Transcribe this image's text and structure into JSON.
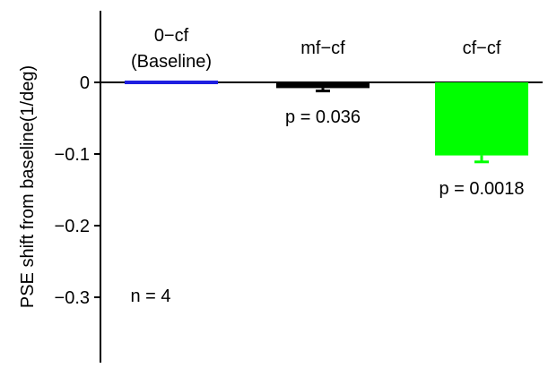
{
  "chart_data": {
    "type": "bar",
    "title": "",
    "xlabel": "",
    "ylabel": "PSE shift from baseline(1/deg)",
    "ylim": [
      -0.39,
      0.1
    ],
    "yticks": [
      0,
      -0.1,
      -0.2,
      -0.3
    ],
    "ytick_labels": [
      "0",
      "−0.1",
      "−0.2",
      "−0.3"
    ],
    "grid": false,
    "legend": "none",
    "categories": [
      {
        "label": "0−cf",
        "sublabel": "(Baseline)"
      },
      {
        "label": "mf−cf",
        "sublabel": ""
      },
      {
        "label": "cf−cf",
        "sublabel": ""
      }
    ],
    "values": [
      0.0,
      -0.008,
      -0.102
    ],
    "errors": [
      0.0,
      0.004,
      0.009
    ],
    "colors": [
      "#1f1fe0",
      "#000000",
      "#00ff00"
    ],
    "pvalues": [
      "",
      "p = 0.036",
      "p = 0.0018"
    ],
    "annotations": [
      "n = 4"
    ]
  }
}
